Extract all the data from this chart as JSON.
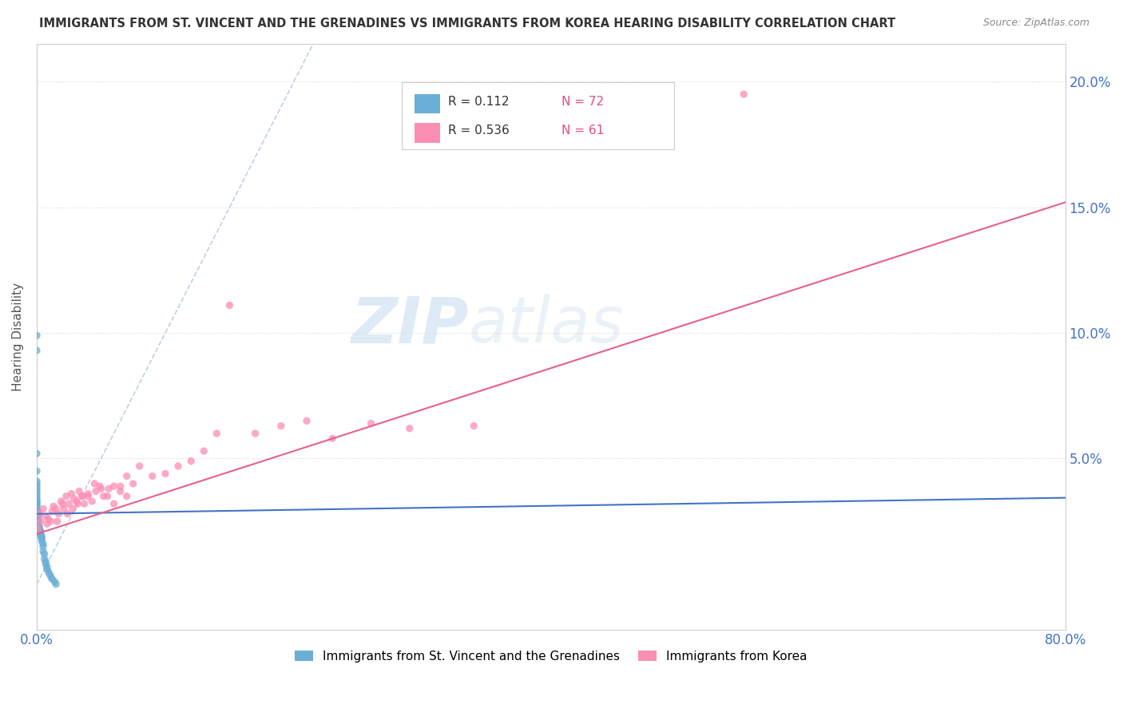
{
  "title": "IMMIGRANTS FROM ST. VINCENT AND THE GRENADINES VS IMMIGRANTS FROM KOREA HEARING DISABILITY CORRELATION CHART",
  "source": "Source: ZipAtlas.com",
  "ylabel": "Hearing Disability",
  "watermark_zip": "ZIP",
  "watermark_atlas": "atlas",
  "legend1_label": "Immigrants from St. Vincent and the Grenadines",
  "legend2_label": "Immigrants from Korea",
  "R1": "0.112",
  "N1": "72",
  "R2": "0.536",
  "N2": "61",
  "color1": "#6baed6",
  "color2": "#fc8db3",
  "trendline1_color": "#4472c4",
  "trendline2_color": "#e8608a",
  "diag_color": "#b0c4de",
  "xlim": [
    0.0,
    0.8
  ],
  "ylim": [
    -0.018,
    0.215
  ],
  "yticks": [
    0.0,
    0.05,
    0.1,
    0.15,
    0.2
  ],
  "ytick_labels": [
    "",
    "5.0%",
    "10.0%",
    "15.0%",
    "20.0%"
  ],
  "trendline1_slope": 0.008,
  "trendline1_intercept": 0.028,
  "trendline2_slope": 0.165,
  "trendline2_intercept": 0.02,
  "sv_x": [
    0.0,
    0.0,
    0.0,
    0.0,
    0.0,
    0.0,
    0.0,
    0.0,
    0.0,
    0.0,
    0.0,
    0.0,
    0.0,
    0.0,
    0.0,
    0.0,
    0.0,
    0.0,
    0.0,
    0.0,
    0.0,
    0.0,
    0.001,
    0.001,
    0.001,
    0.001,
    0.001,
    0.001,
    0.001,
    0.001,
    0.001,
    0.001,
    0.001,
    0.001,
    0.001,
    0.001,
    0.001,
    0.001,
    0.001,
    0.001,
    0.001,
    0.001,
    0.001,
    0.002,
    0.002,
    0.002,
    0.002,
    0.002,
    0.002,
    0.003,
    0.003,
    0.003,
    0.003,
    0.003,
    0.004,
    0.004,
    0.004,
    0.005,
    0.005,
    0.005,
    0.006,
    0.006,
    0.007,
    0.007,
    0.008,
    0.008,
    0.009,
    0.01,
    0.011,
    0.012,
    0.014,
    0.015
  ],
  "sv_y": [
    0.099,
    0.093,
    0.052,
    0.045,
    0.041,
    0.04,
    0.039,
    0.038,
    0.037,
    0.036,
    0.035,
    0.034,
    0.033,
    0.033,
    0.032,
    0.032,
    0.031,
    0.031,
    0.03,
    0.03,
    0.029,
    0.029,
    0.029,
    0.029,
    0.028,
    0.028,
    0.028,
    0.027,
    0.027,
    0.027,
    0.027,
    0.027,
    0.026,
    0.026,
    0.025,
    0.025,
    0.025,
    0.025,
    0.025,
    0.024,
    0.024,
    0.023,
    0.023,
    0.023,
    0.022,
    0.022,
    0.022,
    0.022,
    0.021,
    0.021,
    0.021,
    0.02,
    0.02,
    0.019,
    0.019,
    0.018,
    0.017,
    0.016,
    0.015,
    0.013,
    0.012,
    0.01,
    0.009,
    0.008,
    0.007,
    0.006,
    0.005,
    0.004,
    0.003,
    0.002,
    0.001,
    0.0
  ],
  "korea_x": [
    0.001,
    0.002,
    0.003,
    0.005,
    0.007,
    0.009,
    0.011,
    0.013,
    0.015,
    0.017,
    0.019,
    0.021,
    0.023,
    0.025,
    0.027,
    0.029,
    0.031,
    0.033,
    0.035,
    0.037,
    0.04,
    0.043,
    0.046,
    0.049,
    0.052,
    0.056,
    0.06,
    0.065,
    0.07,
    0.075,
    0.008,
    0.012,
    0.016,
    0.02,
    0.024,
    0.028,
    0.032,
    0.036,
    0.04,
    0.045,
    0.05,
    0.055,
    0.06,
    0.065,
    0.07,
    0.08,
    0.09,
    0.1,
    0.11,
    0.12,
    0.13,
    0.14,
    0.15,
    0.17,
    0.19,
    0.21,
    0.23,
    0.26,
    0.29,
    0.34,
    0.55
  ],
  "korea_y": [
    0.022,
    0.028,
    0.025,
    0.03,
    0.027,
    0.026,
    0.025,
    0.031,
    0.03,
    0.028,
    0.033,
    0.03,
    0.035,
    0.032,
    0.036,
    0.034,
    0.033,
    0.037,
    0.035,
    0.032,
    0.036,
    0.033,
    0.037,
    0.039,
    0.035,
    0.038,
    0.032,
    0.037,
    0.035,
    0.04,
    0.024,
    0.029,
    0.025,
    0.032,
    0.028,
    0.03,
    0.032,
    0.035,
    0.035,
    0.04,
    0.038,
    0.035,
    0.039,
    0.039,
    0.043,
    0.047,
    0.043,
    0.044,
    0.047,
    0.049,
    0.053,
    0.06,
    0.111,
    0.06,
    0.063,
    0.065,
    0.058,
    0.064,
    0.062,
    0.063,
    0.195
  ]
}
